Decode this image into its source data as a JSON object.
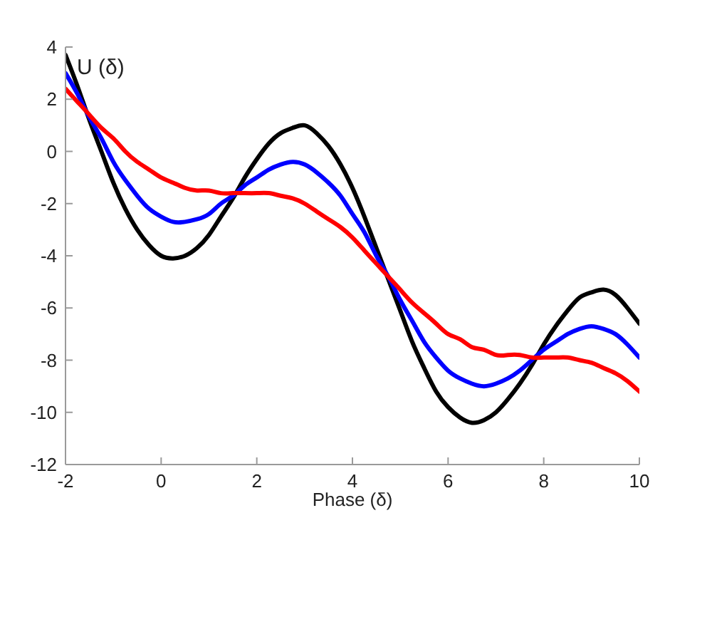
{
  "chart_data": {
    "type": "line",
    "xlabel": "Phase (δ)",
    "ylabel": "U (δ)",
    "x": [
      -2,
      -1.75,
      -1.5,
      -1.25,
      -1,
      -0.75,
      -0.5,
      -0.25,
      0,
      0.25,
      0.5,
      0.75,
      1,
      1.25,
      1.5,
      1.75,
      2,
      2.25,
      2.5,
      2.75,
      3,
      3.25,
      3.5,
      3.75,
      4,
      4.25,
      4.5,
      4.75,
      5,
      5.25,
      5.5,
      5.75,
      6,
      6.25,
      6.5,
      6.75,
      7,
      7.25,
      7.5,
      7.75,
      8,
      8.25,
      8.5,
      8.75,
      9,
      9.25,
      9.5,
      9.75,
      10
    ],
    "series": [
      {
        "color": "#000000",
        "values": [
          3.7,
          2.5,
          1.2,
          0.0,
          -1.2,
          -2.2,
          -3.0,
          -3.6,
          -4.0,
          -4.1,
          -4.0,
          -3.7,
          -3.2,
          -2.5,
          -1.8,
          -1.0,
          -0.3,
          0.3,
          0.7,
          0.9,
          1.0,
          0.7,
          0.2,
          -0.5,
          -1.4,
          -2.5,
          -3.7,
          -4.9,
          -6.1,
          -7.3,
          -8.3,
          -9.2,
          -9.8,
          -10.2,
          -10.4,
          -10.3,
          -10.0,
          -9.5,
          -8.9,
          -8.2,
          -7.4,
          -6.7,
          -6.1,
          -5.6,
          -5.4,
          -5.3,
          -5.5,
          -6.0,
          -6.6
        ]
      },
      {
        "color": "#0000ff",
        "values": [
          3.0,
          2.2,
          1.3,
          0.5,
          -0.4,
          -1.1,
          -1.7,
          -2.2,
          -2.5,
          -2.7,
          -2.7,
          -2.6,
          -2.4,
          -2.0,
          -1.7,
          -1.3,
          -1.0,
          -0.7,
          -0.5,
          -0.4,
          -0.5,
          -0.8,
          -1.2,
          -1.7,
          -2.4,
          -3.1,
          -4.0,
          -4.8,
          -5.7,
          -6.5,
          -7.3,
          -7.9,
          -8.4,
          -8.7,
          -8.9,
          -9.0,
          -8.9,
          -8.7,
          -8.4,
          -8.0,
          -7.6,
          -7.3,
          -7.0,
          -6.8,
          -6.7,
          -6.8,
          -7.0,
          -7.4,
          -7.9
        ]
      },
      {
        "color": "#ff0000",
        "values": [
          2.4,
          1.9,
          1.4,
          0.9,
          0.5,
          0.0,
          -0.4,
          -0.7,
          -1.0,
          -1.2,
          -1.4,
          -1.5,
          -1.5,
          -1.6,
          -1.6,
          -1.6,
          -1.6,
          -1.6,
          -1.7,
          -1.8,
          -2.0,
          -2.3,
          -2.6,
          -2.9,
          -3.3,
          -3.8,
          -4.3,
          -4.8,
          -5.3,
          -5.8,
          -6.2,
          -6.6,
          -7.0,
          -7.2,
          -7.5,
          -7.6,
          -7.8,
          -7.8,
          -7.8,
          -7.9,
          -7.9,
          -7.9,
          -7.9,
          -8.0,
          -8.1,
          -8.3,
          -8.5,
          -8.8,
          -9.2
        ]
      }
    ],
    "xlim": [
      -2,
      10
    ],
    "xticks": [
      -2,
      0,
      2,
      4,
      6,
      8,
      10
    ],
    "ylim": [
      -12,
      4
    ],
    "yticks": [
      -12,
      -10,
      -8,
      -6,
      -4,
      -2,
      0,
      2,
      4
    ],
    "marker": "none",
    "line_style": "solid"
  }
}
